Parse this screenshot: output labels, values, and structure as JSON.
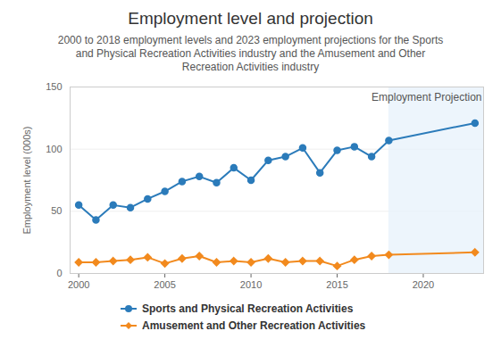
{
  "chart_data": {
    "type": "line",
    "title": "Employment level and projection",
    "subtitle": "2000 to 2018 employment levels and 2023 employment projections for the Sports and Physical Recreation Activities industry and the Amusement and Other Recreation Activities industry",
    "y_label": "Employment level (000s)",
    "x": [
      2000,
      2001,
      2002,
      2003,
      2004,
      2005,
      2006,
      2007,
      2008,
      2009,
      2010,
      2011,
      2012,
      2013,
      2014,
      2015,
      2016,
      2017,
      2018,
      2023
    ],
    "series": [
      {
        "name": "Sports and Physical Recreation Activities",
        "color": "#2b7bba",
        "marker": "circle",
        "values": [
          55,
          43,
          55,
          53,
          60,
          66,
          74,
          78,
          73,
          85,
          75,
          91,
          94,
          101,
          81,
          99,
          102,
          94,
          107,
          121
        ]
      },
      {
        "name": "Amusement and Other Recreation Activities",
        "color": "#f28a1e",
        "marker": "diamond",
        "values": [
          9,
          9,
          10,
          11,
          13,
          8,
          12,
          14,
          9,
          10,
          9,
          12,
          9,
          10,
          10,
          6,
          11,
          14,
          15,
          17
        ]
      }
    ],
    "projection": {
      "label": "Employment Projection",
      "from": 2018
    },
    "xlim": [
      1999.5,
      2023.5
    ],
    "xticks": [
      2000,
      2005,
      2010,
      2015,
      2020
    ],
    "ylim": [
      0,
      150
    ],
    "yticks": [
      0,
      50,
      100,
      150
    ],
    "grid": true,
    "legend": "bottom"
  }
}
